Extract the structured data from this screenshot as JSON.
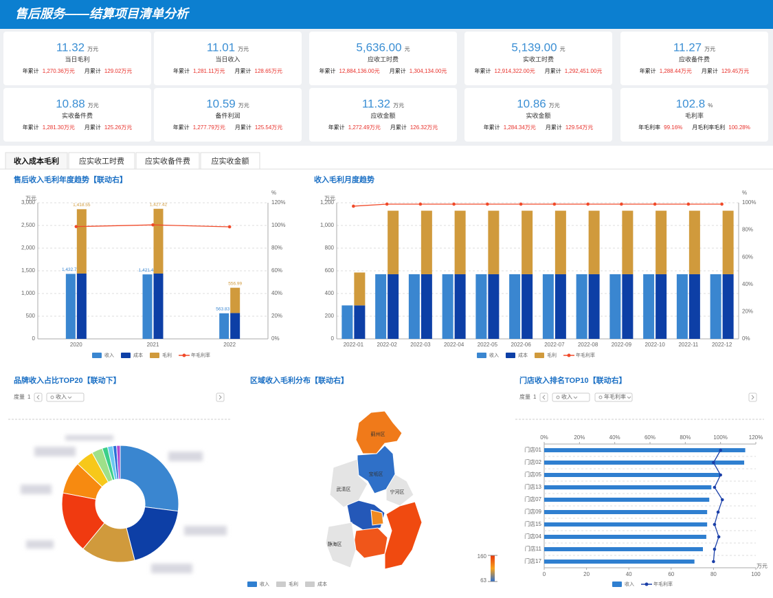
{
  "header": {
    "title": "售后服务——结算项目清单分析"
  },
  "cards": [
    {
      "value": "11.32",
      "unit": "万元",
      "label": "当日毛利",
      "year_label": "年累计",
      "year_value": "1,270.36万元",
      "month_label": "月累计",
      "month_value": "129.02万元"
    },
    {
      "value": "11.01",
      "unit": "万元",
      "label": "当日收入",
      "year_label": "年累计",
      "year_value": "1,281.11万元",
      "month_label": "月累计",
      "month_value": "128.65万元"
    },
    {
      "value": "5,636.00",
      "unit": "元",
      "label": "应收工时费",
      "year_label": "年累计",
      "year_value": "12,884,136.00元",
      "month_label": "月累计",
      "month_value": "1,304,134.00元"
    },
    {
      "value": "5,139.00",
      "unit": "元",
      "label": "实收工时费",
      "year_label": "年累计",
      "year_value": "12,914,322.00元",
      "month_label": "月累计",
      "month_value": "1,292,451.00元"
    },
    {
      "value": "11.27",
      "unit": "万元",
      "label": "应收备件费",
      "year_label": "年累计",
      "year_value": "1,288.44万元",
      "month_label": "月累计",
      "month_value": "129.45万元"
    },
    {
      "value": "10.88",
      "unit": "万元",
      "label": "实收备件费",
      "year_label": "年累计",
      "year_value": "1,281.30万元",
      "month_label": "月累计",
      "month_value": "125.26万元"
    },
    {
      "value": "10.59",
      "unit": "万元",
      "label": "备件利润",
      "year_label": "年累计",
      "year_value": "1,277.79万元",
      "month_label": "月累计",
      "month_value": "125.54万元"
    },
    {
      "value": "11.32",
      "unit": "万元",
      "label": "应收金额",
      "year_label": "年累计",
      "year_value": "1,272.49万元",
      "month_label": "月累计",
      "month_value": "126.32万元"
    },
    {
      "value": "10.86",
      "unit": "万元",
      "label": "实收金额",
      "year_label": "年累计",
      "year_value": "1,284.34万元",
      "month_label": "月累计",
      "month_value": "129.54万元"
    },
    {
      "value": "102.8",
      "unit": "%",
      "label": "毛利率",
      "year_label": "年毛利率",
      "year_value": "99.16%",
      "month_label": "月毛利率毛利",
      "month_value": "100.28%"
    }
  ],
  "tabs": [
    "收入成本毛利",
    "应实收工时费",
    "应实收备件费",
    "应实收金额"
  ],
  "chart_data": [
    {
      "type": "bar",
      "title": "售后收入毛利年度趋势【联动右】",
      "y_unit": "万元",
      "y2_unit": "%",
      "categories": [
        "2020",
        "2021",
        "2022"
      ],
      "series": [
        {
          "name": "收入",
          "color": "#3a86d0",
          "values": [
            1432.7,
            1421.4,
            563.83
          ],
          "value_labels": [
            "1,432.7",
            "1,421.4",
            "563.83"
          ]
        },
        {
          "name": "成本",
          "color": "#0d3fa6",
          "stacked": true,
          "values": [
            1440,
            1440,
            570
          ]
        },
        {
          "name": "毛利",
          "color": "#d09a3c",
          "stacked": true,
          "values": [
            1418.55,
            1427.42,
            556.99
          ],
          "value_labels": [
            "1,418.55",
            "1,427.42",
            "556.99"
          ]
        },
        {
          "name": "年毛利率",
          "type": "line",
          "axis": "y2",
          "color": "#f04a2a",
          "values": [
            99,
            100.5,
            98.8
          ]
        }
      ],
      "ylim": [
        0,
        3000
      ],
      "yticks": [
        0,
        500,
        {
          "value": 1000,
          "label": "1,000"
        },
        {
          "value": 1500,
          "label": "1,500"
        },
        {
          "value": 2000,
          "label": "2,000"
        },
        {
          "value": 2500,
          "label": "2,500"
        },
        {
          "value": 3000,
          "label": "3,000"
        }
      ],
      "y2lim": [
        0,
        120
      ],
      "y2ticks": [
        {
          "value": 0,
          "label": "0%"
        },
        {
          "value": 20,
          "label": "20%"
        },
        {
          "value": 40,
          "label": "40%"
        },
        {
          "value": 60,
          "label": "60%"
        },
        {
          "value": 80,
          "label": "80%"
        },
        {
          "value": 100,
          "label": "100%"
        },
        {
          "value": 120,
          "label": "120%"
        }
      ],
      "grid": true
    },
    {
      "type": "bar",
      "title": "收入毛利月度趋势",
      "y_unit": "万元",
      "y2_unit": "%",
      "categories": [
        "2022-01",
        "2022-02",
        "2022-03",
        "2022-04",
        "2022-05",
        "2022-06",
        "2022-07",
        "2022-08",
        "2022-09",
        "2022-10",
        "2022-11",
        "2022-12"
      ],
      "series": [
        {
          "name": "收入",
          "color": "#3a86d0",
          "values": [
            295,
            570,
            570,
            570,
            570,
            570,
            570,
            570,
            570,
            570,
            570,
            570
          ]
        },
        {
          "name": "成本",
          "color": "#0d3fa6",
          "stacked": true,
          "values": [
            295,
            570,
            570,
            570,
            570,
            570,
            570,
            570,
            570,
            570,
            570,
            570
          ]
        },
        {
          "name": "毛利",
          "color": "#d09a3c",
          "stacked": true,
          "values": [
            290,
            560,
            560,
            560,
            560,
            560,
            560,
            560,
            560,
            560,
            560,
            560
          ]
        },
        {
          "name": "年毛利率",
          "type": "line",
          "axis": "y2",
          "color": "#f04a2a",
          "values": [
            97.5,
            99,
            99,
            99,
            99,
            99,
            99,
            99,
            99,
            99,
            99,
            99
          ]
        }
      ],
      "ylim": [
        0,
        1200
      ],
      "yticks": [
        0,
        200,
        400,
        600,
        800,
        {
          "value": 1000,
          "label": "1,000"
        },
        {
          "value": 1200,
          "label": "1,200"
        }
      ],
      "y2lim": [
        0,
        100
      ],
      "y2ticks": [
        {
          "value": 0,
          "label": "0%"
        },
        {
          "value": 20,
          "label": "20%"
        },
        {
          "value": 40,
          "label": "40%"
        },
        {
          "value": 60,
          "label": "60%"
        },
        {
          "value": 80,
          "label": "80%"
        },
        {
          "value": 100,
          "label": "100%"
        }
      ],
      "grid": true
    },
    {
      "type": "pie",
      "title": "品牌收入占比TOP20【联动下】",
      "controls": {
        "measure_label": "度量",
        "measure_count": "1",
        "measures": [
          "收入"
        ]
      },
      "values": [
        27,
        19,
        15,
        17,
        9,
        5,
        3,
        1.5,
        1.5,
        1,
        1
      ],
      "colors": [
        "#3a86d0",
        "#0d3fa6",
        "#d09a3c",
        "#f03a10",
        "#f78a10",
        "#f7c81a",
        "#9ee08a",
        "#3ccf8a",
        "#6cc8f0",
        "#2a6fd8",
        "#b04ad0"
      ]
    },
    {
      "type": "map",
      "title": "区域收入毛利分布【联动右】",
      "series": [
        {
          "name": "收入",
          "color": "#2f7fd0"
        },
        {
          "name": "毛利",
          "color": "#cccccc"
        },
        {
          "name": "成本",
          "color": "#cccccc"
        }
      ],
      "regions": [
        {
          "name": "蓟州区",
          "color": "#f07a1a"
        },
        {
          "name": "宝坻区",
          "color": "#2f70c8"
        },
        {
          "name": "宁河区",
          "color": "#e4e4e4"
        },
        {
          "name": "武清区",
          "color": "#e4e4e4"
        },
        {
          "color": "#2458b8"
        },
        {
          "color": "#f0561a"
        },
        {
          "color": "#f04a10"
        },
        {
          "name": "静海区",
          "color": "#e4e4e4"
        },
        {
          "color": "#f08a20"
        }
      ],
      "visual_map": {
        "max": 160,
        "min": 63,
        "colors": [
          "#e8380d",
          "#f7a21b",
          "#2c6fce"
        ]
      }
    },
    {
      "type": "hbar",
      "title": "门店收入排名TOP10【联动右】",
      "controls": {
        "measure_label": "度量",
        "measure_count": "1",
        "measures": [
          "收入",
          "年毛利率"
        ]
      },
      "x_unit": "万元",
      "categories": [
        "门店01",
        "门店02",
        "门店05",
        "门店13",
        "门店07",
        "门店09",
        "门店15",
        "门店04",
        "门店11",
        "门店17"
      ],
      "series": [
        {
          "name": "收入",
          "color": "#2f7fd0",
          "values": [
            95,
            94.5,
            83,
            79,
            78,
            77,
            77,
            76.6,
            75,
            71
          ]
        },
        {
          "name": "年毛利率",
          "type": "line",
          "axis": "x2",
          "color": "#1a3fa8",
          "values": [
            100,
            96,
            100,
            96.6,
            101,
            98.6,
            96.6,
            99,
            96.6,
            96
          ]
        }
      ],
      "xlim": [
        0,
        100
      ],
      "xticks": [
        0,
        20,
        40,
        60,
        80,
        100
      ],
      "x2lim": [
        0,
        120
      ],
      "x2ticks": [
        {
          "value": 0,
          "label": "0%"
        },
        {
          "value": 20,
          "label": "20%"
        },
        {
          "value": 40,
          "label": "40%"
        },
        {
          "value": 60,
          "label": "60%"
        },
        {
          "value": 80,
          "label": "80%"
        },
        {
          "value": 100,
          "label": "100%"
        },
        {
          "value": 120,
          "label": "120%"
        }
      ]
    }
  ]
}
